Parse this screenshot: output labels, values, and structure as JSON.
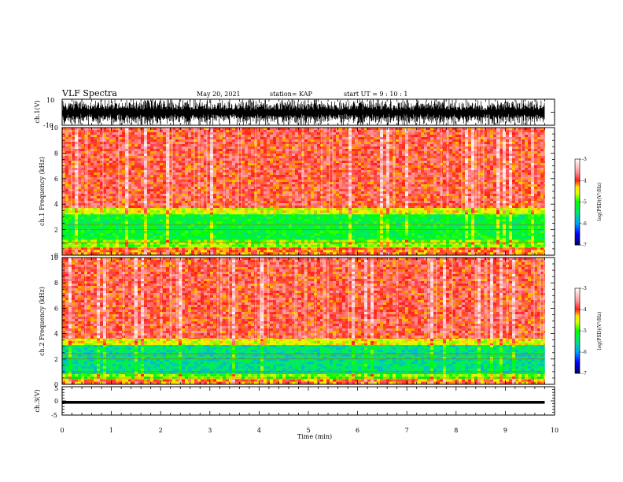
{
  "header": {
    "title": "VLF Spectra",
    "date": "May 20, 2021",
    "station": "station= KAP",
    "start": "start  UT =   9  : 10 : 1"
  },
  "chart_data": [
    {
      "type": "line",
      "id": "ch1-waveform",
      "ylabel": "ch.1(V)",
      "ylim": [
        -10,
        10
      ],
      "yticks": [
        "10",
        "-10"
      ],
      "xlim": [
        0,
        10
      ],
      "data_extent_min": [
        0,
        9.8
      ],
      "color": "#000000"
    },
    {
      "type": "heatmap",
      "id": "ch1-spectrogram",
      "ylabel": "ch.1  Frequency  (kHz)",
      "ylim": [
        0,
        10
      ],
      "yticks": [
        "0",
        "2",
        "4",
        "6",
        "8",
        "10"
      ],
      "xlim": [
        0,
        10
      ],
      "data_extent_min": [
        0,
        9.8
      ],
      "bands": [
        {
          "fmin": 3.7,
          "fmax": 10,
          "level": -3.9
        },
        {
          "fmin": 3.2,
          "fmax": 3.7,
          "level": -4.5
        },
        {
          "fmin": 1.2,
          "fmax": 3.2,
          "level": -5.2
        },
        {
          "fmin": 0.6,
          "fmax": 1.2,
          "level": -4.8
        },
        {
          "fmin": 0,
          "fmax": 0.6,
          "level": -4.1
        }
      ],
      "colorbar": {
        "title": "log(PSD)(V²/Hz)",
        "ticks": [
          "-3",
          "-4",
          "-5",
          "-6",
          "-7"
        ],
        "range": [
          -7,
          -3
        ]
      }
    },
    {
      "type": "heatmap",
      "id": "ch2-spectrogram",
      "ylabel": "ch.2  Frequency  (kHz)",
      "ylim": [
        0,
        10
      ],
      "yticks": [
        "0",
        "2",
        "4",
        "6",
        "8",
        "10"
      ],
      "xlim": [
        0,
        10
      ],
      "data_extent_min": [
        0,
        9.8
      ],
      "bands": [
        {
          "fmin": 3.6,
          "fmax": 10,
          "level": -3.9
        },
        {
          "fmin": 3.1,
          "fmax": 3.6,
          "level": -4.5
        },
        {
          "fmin": 0.8,
          "fmax": 3.1,
          "level": -5.5
        },
        {
          "fmin": 0.4,
          "fmax": 0.8,
          "level": -4.8
        },
        {
          "fmin": 0,
          "fmax": 0.4,
          "level": -4.1
        }
      ],
      "colorbar": {
        "title": "log(PSD)(V²/Hz)",
        "ticks": [
          "-3",
          "-4",
          "-5",
          "-6",
          "-7"
        ],
        "range": [
          -7,
          -3
        ]
      }
    },
    {
      "type": "line",
      "id": "ch3-waveform",
      "ylabel": "ch.3(V)",
      "ylim": [
        -5,
        5
      ],
      "yticks": [
        "5",
        "0",
        "-5"
      ],
      "xlim": [
        0,
        10
      ],
      "xticks": [
        "0",
        "1",
        "2",
        "3",
        "4",
        "5",
        "6",
        "7",
        "8",
        "9",
        "10"
      ],
      "xlabel": "Time  (min)",
      "signal_band_volts": [
        -1,
        0
      ],
      "color": "#000000"
    }
  ],
  "palette": {
    "background": "#ffffff",
    "black": "#000000",
    "red": "#ff1a1a",
    "yellow": "#ffff00",
    "green": "#00ff00",
    "blue": "#0000ff",
    "navy": "#000060"
  }
}
